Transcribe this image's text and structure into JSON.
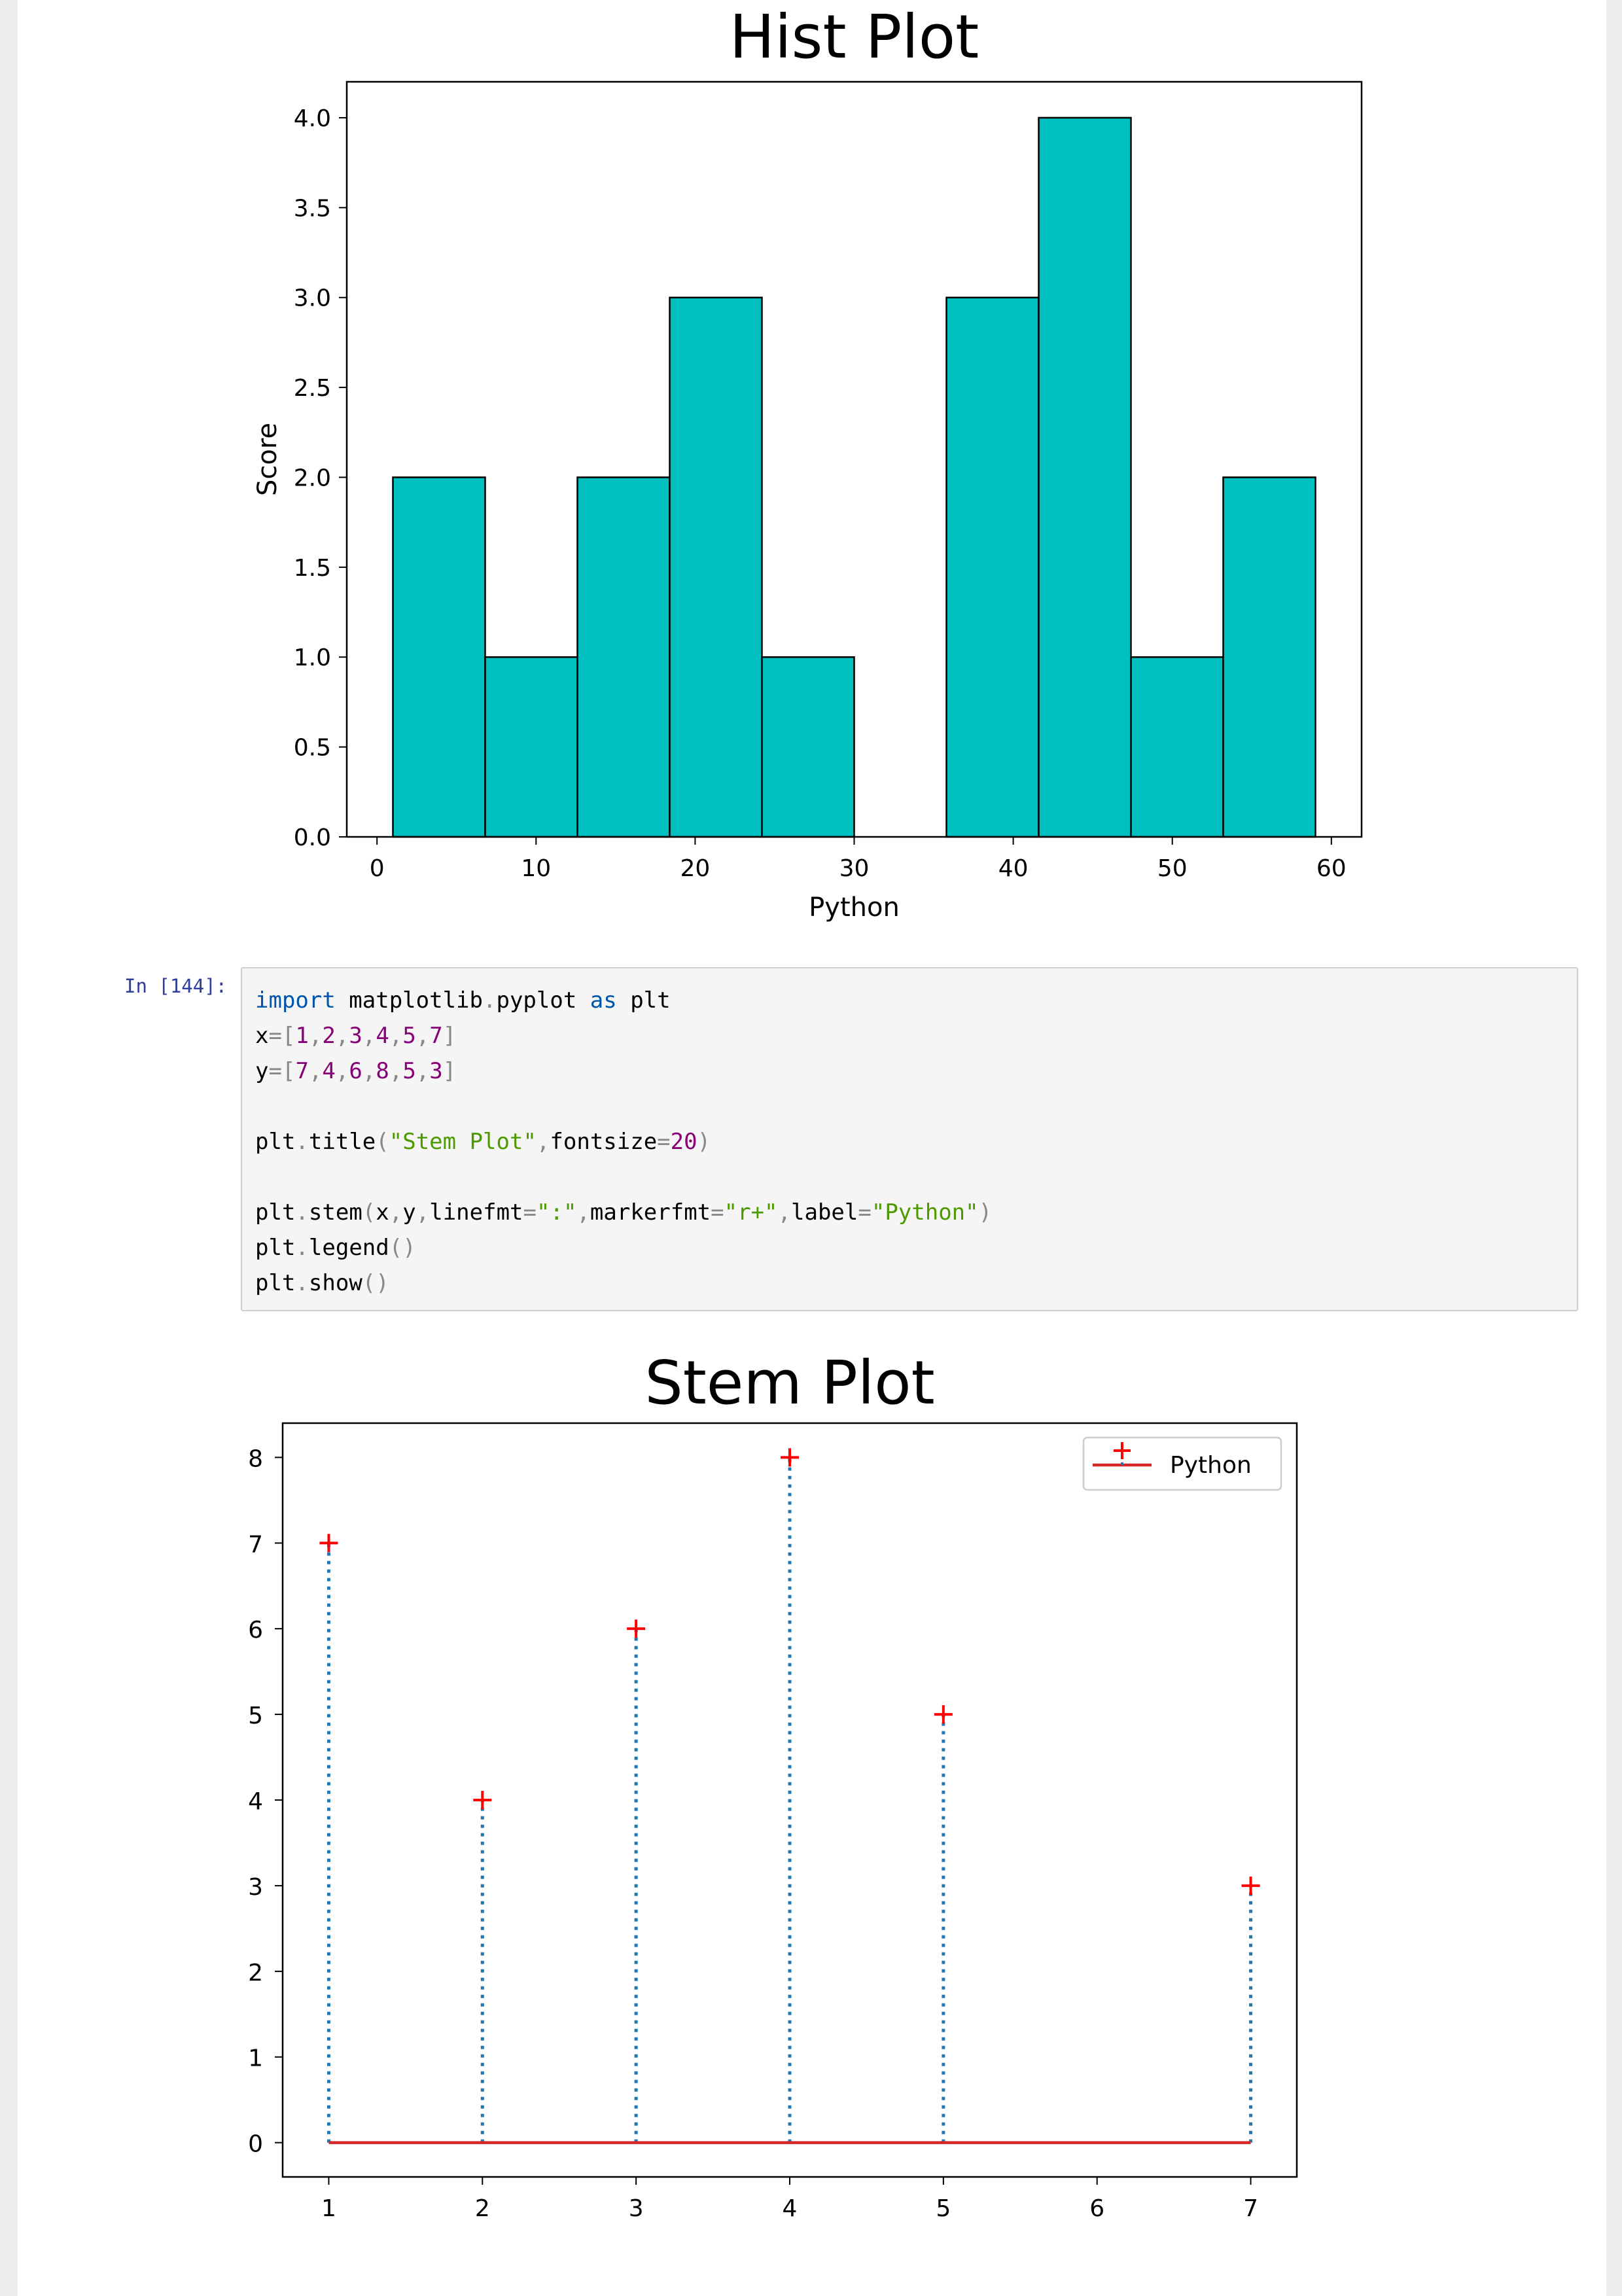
{
  "notebook": {
    "cell": {
      "prompt": "In [144]:",
      "code_lines": [
        [
          [
            "kw",
            "import"
          ],
          [
            "t",
            " matplotlib"
          ],
          [
            "op",
            "."
          ],
          [
            "t",
            "pyplot "
          ],
          [
            "kw",
            "as"
          ],
          [
            "t",
            " plt"
          ]
        ],
        [
          [
            "t",
            "x"
          ],
          [
            "op",
            "="
          ],
          [
            "pn",
            "["
          ],
          [
            "num",
            "1"
          ],
          [
            "pn",
            ","
          ],
          [
            "num",
            "2"
          ],
          [
            "pn",
            ","
          ],
          [
            "num",
            "3"
          ],
          [
            "pn",
            ","
          ],
          [
            "num",
            "4"
          ],
          [
            "pn",
            ","
          ],
          [
            "num",
            "5"
          ],
          [
            "pn",
            ","
          ],
          [
            "num",
            "7"
          ],
          [
            "pn",
            "]"
          ]
        ],
        [
          [
            "t",
            "y"
          ],
          [
            "op",
            "="
          ],
          [
            "pn",
            "["
          ],
          [
            "num",
            "7"
          ],
          [
            "pn",
            ","
          ],
          [
            "num",
            "4"
          ],
          [
            "pn",
            ","
          ],
          [
            "num",
            "6"
          ],
          [
            "pn",
            ","
          ],
          [
            "num",
            "8"
          ],
          [
            "pn",
            ","
          ],
          [
            "num",
            "5"
          ],
          [
            "pn",
            ","
          ],
          [
            "num",
            "3"
          ],
          [
            "pn",
            "]"
          ]
        ],
        [],
        [
          [
            "t",
            "plt"
          ],
          [
            "op",
            "."
          ],
          [
            "t",
            "title"
          ],
          [
            "pn",
            "("
          ],
          [
            "str",
            "\"Stem Plot\""
          ],
          [
            "pn",
            ","
          ],
          [
            "t",
            "fontsize"
          ],
          [
            "op",
            "="
          ],
          [
            "num",
            "20"
          ],
          [
            "pn",
            ")"
          ]
        ],
        [],
        [
          [
            "t",
            "plt"
          ],
          [
            "op",
            "."
          ],
          [
            "t",
            "stem"
          ],
          [
            "pn",
            "("
          ],
          [
            "t",
            "x"
          ],
          [
            "pn",
            ","
          ],
          [
            "t",
            "y"
          ],
          [
            "pn",
            ","
          ],
          [
            "t",
            "linefmt"
          ],
          [
            "op",
            "="
          ],
          [
            "str",
            "\":\""
          ],
          [
            "pn",
            ","
          ],
          [
            "t",
            "markerfmt"
          ],
          [
            "op",
            "="
          ],
          [
            "str",
            "\"r+\""
          ],
          [
            "pn",
            ","
          ],
          [
            "t",
            "label"
          ],
          [
            "op",
            "="
          ],
          [
            "str",
            "\"Python\""
          ],
          [
            "pn",
            ")"
          ]
        ],
        [
          [
            "t",
            "plt"
          ],
          [
            "op",
            "."
          ],
          [
            "t",
            "legend"
          ],
          [
            "pn",
            "()"
          ]
        ],
        [
          [
            "t",
            "plt"
          ],
          [
            "op",
            "."
          ],
          [
            "t",
            "show"
          ],
          [
            "pn",
            "()"
          ]
        ]
      ]
    }
  },
  "chart_data": [
    {
      "type": "bar",
      "title": "Hist Plot",
      "xlabel": "Python",
      "ylabel": "Score",
      "bin_edges": [
        1,
        6.8,
        12.6,
        18.4,
        24.2,
        30,
        35.8,
        41.6,
        47.4,
        53.2,
        59
      ],
      "values": [
        2,
        1,
        2,
        3,
        1,
        0,
        3,
        4,
        1,
        2
      ],
      "xlim": [
        -1.9,
        61.9
      ],
      "ylim": [
        0,
        4.2
      ],
      "xticks": [
        0,
        10,
        20,
        30,
        40,
        50,
        60
      ],
      "xtick_labels": [
        "0",
        "10",
        "20",
        "30",
        "40",
        "50",
        "60"
      ],
      "yticks": [
        0,
        0.5,
        1,
        1.5,
        2,
        2.5,
        3,
        3.5,
        4
      ],
      "ytick_labels": [
        "0.0",
        "0.5",
        "1.0",
        "1.5",
        "2.0",
        "2.5",
        "3.0",
        "3.5",
        "4.0"
      ],
      "bar_color": "#00bfbf",
      "edge_color": "#000000",
      "grid": false
    },
    {
      "type": "scatter",
      "style": "stem",
      "title": "Stem Plot",
      "x": [
        1,
        2,
        3,
        4,
        5,
        7
      ],
      "y": [
        7,
        4,
        6,
        8,
        5,
        3
      ],
      "series": [
        {
          "name": "Python",
          "x": [
            1,
            2,
            3,
            4,
            5,
            7
          ],
          "y": [
            7,
            4,
            6,
            8,
            5,
            3
          ]
        }
      ],
      "xlim": [
        0.7,
        7.3
      ],
      "ylim": [
        -0.4,
        8.4
      ],
      "xticks": [
        1,
        2,
        3,
        4,
        5,
        6,
        7
      ],
      "xtick_labels": [
        "1",
        "2",
        "3",
        "4",
        "5",
        "6",
        "7"
      ],
      "yticks": [
        0,
        1,
        2,
        3,
        4,
        5,
        6,
        7,
        8
      ],
      "ytick_labels": [
        "0",
        "1",
        "2",
        "3",
        "4",
        "5",
        "6",
        "7",
        "8"
      ],
      "stem_color": "#1f77b4",
      "marker_color": "#ff0000",
      "baseline_color": "#d62728",
      "legend_position": "upper right",
      "grid": false
    }
  ]
}
